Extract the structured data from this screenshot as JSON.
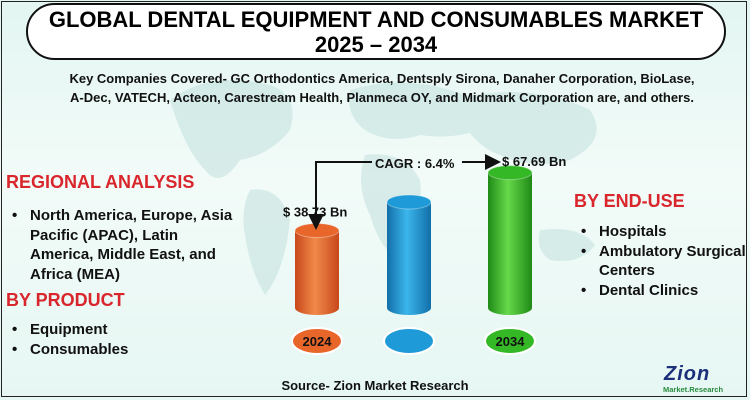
{
  "title": {
    "line1": "GLOBAL DENTAL EQUIPMENT AND CONSUMABLES MARKET",
    "line2": "2025 – 2034"
  },
  "companies_text": "Key Companies Covered- GC Orthodontics America, Dentsply Sirona, Danaher Corporation, BioLase, A-Dec, VATECH, Acteon, Carestream Health, Planmeca OY, and Midmark Corporation are, and others.",
  "regional": {
    "heading": "REGIONAL ANALYSIS",
    "items": [
      "North America, Europe, Asia Pacific (APAC), Latin America, Middle East, and Africa (MEA)"
    ]
  },
  "product": {
    "heading": "BY PRODUCT",
    "items": [
      "Equipment",
      "Consumables"
    ]
  },
  "end_use": {
    "heading": "BY END-USE",
    "items": [
      "Hospitals",
      "Ambulatory Surgical Centers",
      "Dental Clinics"
    ]
  },
  "source": "Source- Zion Market Research",
  "logo": {
    "word": "Zion",
    "sub": "Market.Research"
  },
  "chart_data": {
    "type": "bar",
    "categories": [
      "2024",
      "",
      "2034"
    ],
    "values": [
      38.73,
      53.0,
      67.69
    ],
    "value_labels": [
      "$ 38.73 Bn",
      "",
      "$ 67.69 Bn"
    ],
    "cagr_label": "CAGR : 6.4%",
    "colors": [
      "#e8662a",
      "#1e9ad8",
      "#35b825"
    ],
    "ylim": [
      0,
      70
    ]
  }
}
